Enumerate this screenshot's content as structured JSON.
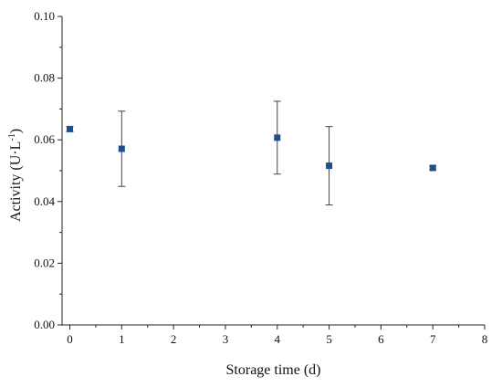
{
  "chart_data": {
    "type": "scatter",
    "xlabel": "Storage time (d)",
    "ylabel_main": "Activity (U·L",
    "ylabel_sup": "-1",
    "ylabel_close": ")",
    "xlim": [
      -0.15,
      8
    ],
    "ylim": [
      0,
      0.1
    ],
    "x_ticks": [
      0,
      1,
      2,
      3,
      4,
      5,
      6,
      7,
      8
    ],
    "x_tick_labels": [
      "0",
      "1",
      "2",
      "3",
      "4",
      "5",
      "6",
      "7",
      "8"
    ],
    "y_ticks": [
      0,
      0.02,
      0.04,
      0.06,
      0.08,
      0.1
    ],
    "y_tick_labels": [
      "0.00",
      "0.02",
      "0.04",
      "0.06",
      "0.08",
      "0.10"
    ],
    "grid": false,
    "legend": "none",
    "marker": "square",
    "marker_color": "#1f4e8c",
    "points": [
      {
        "x": 0,
        "y": 0.0635,
        "err": 0.0008
      },
      {
        "x": 1,
        "y": 0.0571,
        "err": 0.0122
      },
      {
        "x": 4,
        "y": 0.0607,
        "err": 0.0118
      },
      {
        "x": 5,
        "y": 0.0516,
        "err": 0.0127
      },
      {
        "x": 7,
        "y": 0.0509,
        "err": 0.0006
      }
    ]
  }
}
